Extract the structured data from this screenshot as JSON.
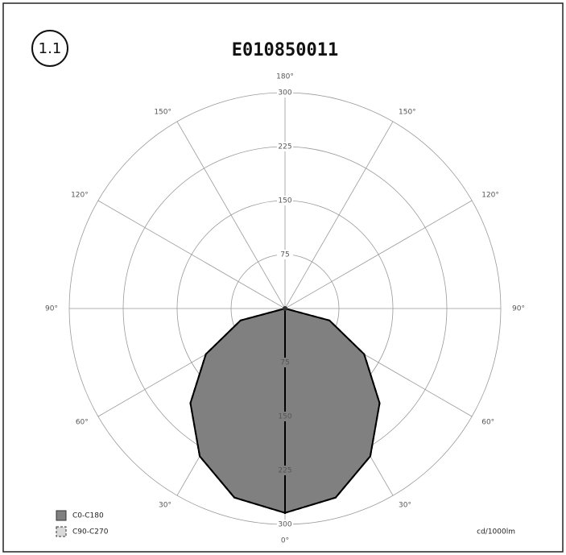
{
  "chart_data": {
    "type": "polar",
    "badge": "1.1",
    "title": "E010850011",
    "unit": "cd/1000lm",
    "rlim": [
      0,
      300
    ],
    "rticks": [
      75,
      150,
      225,
      300
    ],
    "angle_ticks": [
      {
        "value": 0,
        "label": "0°"
      },
      {
        "value": 30,
        "label": "30°"
      },
      {
        "value": 60,
        "label": "60°"
      },
      {
        "value": 90,
        "label": "90°"
      },
      {
        "value": 120,
        "label": "120°"
      },
      {
        "value": 150,
        "label": "150°"
      },
      {
        "value": 180,
        "label": "180°"
      }
    ],
    "x": [
      0,
      15,
      30,
      45,
      60,
      75,
      90
    ],
    "series": [
      {
        "name": "C0-C180",
        "color": "#000000",
        "fill": "#808080",
        "values": [
          284,
          272,
          237,
          186,
          127,
          64,
          0
        ]
      },
      {
        "name": "C90-C270",
        "color": "#000000",
        "fill": "#d9d9d9",
        "values": [
          284,
          272,
          237,
          186,
          127,
          64,
          0
        ]
      }
    ]
  }
}
